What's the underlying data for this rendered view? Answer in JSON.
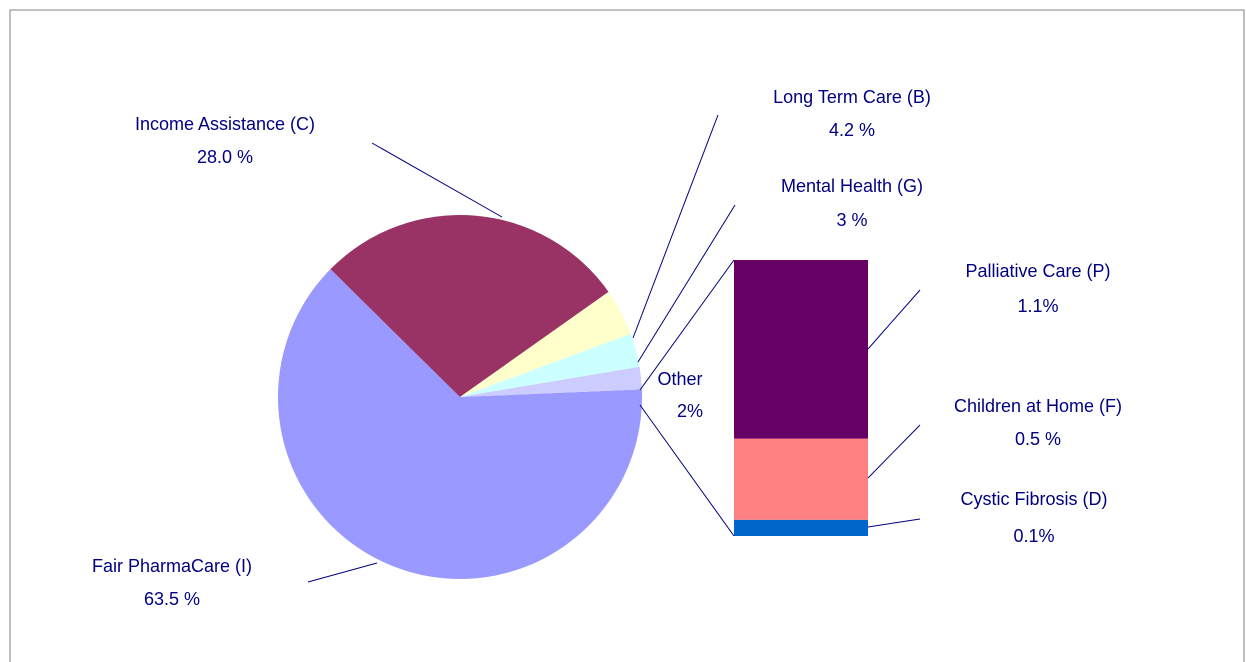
{
  "chart_data": {
    "type": "pie",
    "categories": [
      "Fair PharmaCare (I)",
      "Income Assistance (C)",
      "Long Term Care (B)",
      "Mental Health (G)",
      "Other"
    ],
    "values": [
      63.5,
      28.0,
      4.2,
      3,
      2
    ],
    "value_labels": [
      "63.5 %",
      "28.0 %",
      "4.2 %",
      "3 %",
      "2%"
    ],
    "colors": [
      "#9999ff",
      "#993366",
      "#ffffcc",
      "#ccffff",
      "#ccccff"
    ],
    "breakdown": {
      "type": "bar",
      "categories": [
        "Palliative Care (P)",
        "Children at Home (F)",
        "Cystic Fibrosis (D)"
      ],
      "values": [
        1.1,
        0.5,
        0.1
      ],
      "value_labels": [
        "1.1%",
        "0.5 %",
        "0.1%"
      ],
      "colors": [
        "#660066",
        "#ff8080",
        "#0066cc"
      ]
    }
  }
}
